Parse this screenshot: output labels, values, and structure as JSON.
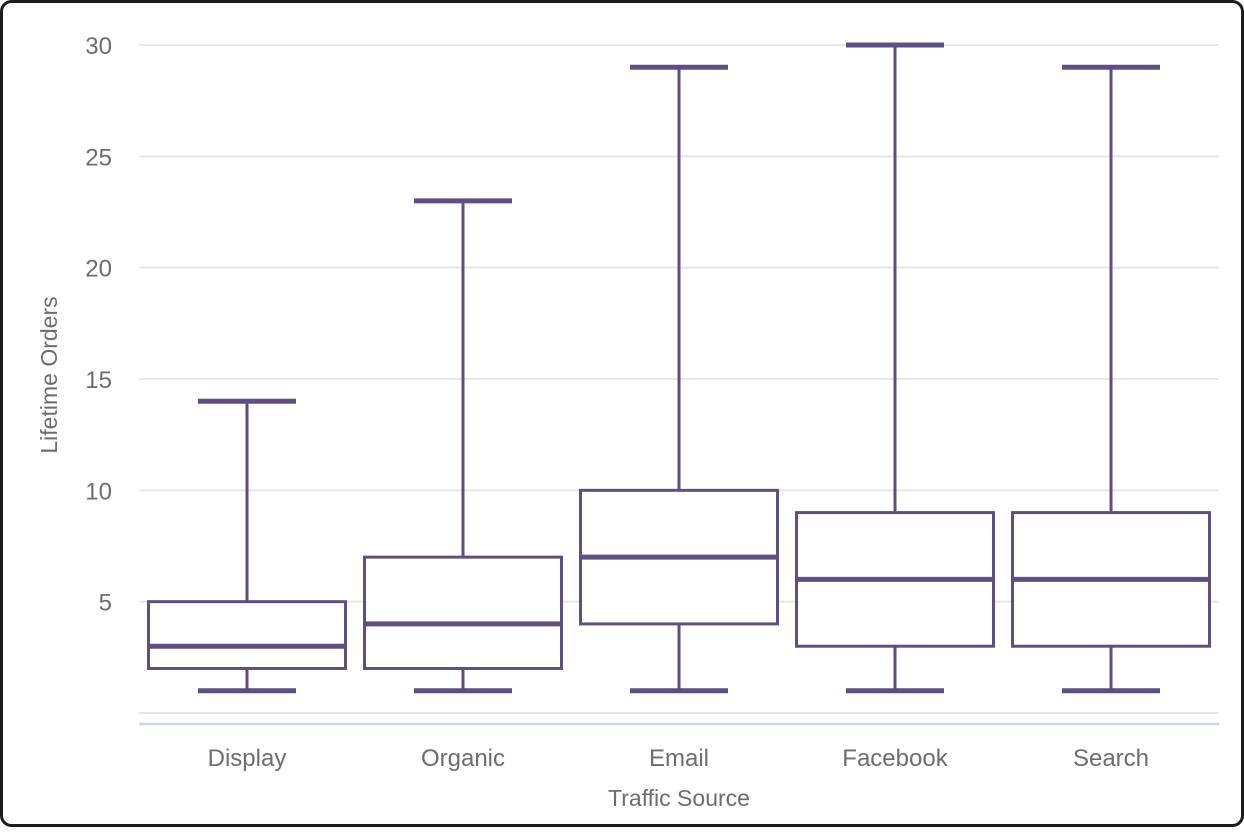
{
  "chart_data": {
    "type": "boxplot",
    "title": "",
    "xlabel": "Traffic Source",
    "ylabel": "Lifetime Orders",
    "categories": [
      "Display",
      "Organic",
      "Email",
      "Facebook",
      "Search"
    ],
    "series": [
      {
        "name": "Display",
        "min": 1,
        "q1": 2,
        "median": 3,
        "q3": 5,
        "max": 14
      },
      {
        "name": "Organic",
        "min": 1,
        "q1": 2,
        "median": 4,
        "q3": 7,
        "max": 23
      },
      {
        "name": "Email",
        "min": 1,
        "q1": 4,
        "median": 7,
        "q3": 10,
        "max": 29
      },
      {
        "name": "Facebook",
        "min": 1,
        "q1": 3,
        "median": 6,
        "q3": 9,
        "max": 30
      },
      {
        "name": "Search",
        "min": 1,
        "q1": 3,
        "median": 6,
        "q3": 9,
        "max": 29
      }
    ],
    "ylim": [
      0,
      30
    ],
    "yticks": [
      5,
      10,
      15,
      20,
      25,
      30
    ],
    "ytick_labels": [
      "5",
      "10",
      "15",
      "20",
      "25",
      "30"
    ],
    "gridline_values": [
      0,
      5,
      10,
      15,
      20,
      25,
      30
    ],
    "grid": true,
    "legend": "none",
    "colors": {
      "box": "#5E4E84",
      "grid": "#E7E7E7",
      "text": "#6D6D6D",
      "baseline": "#C9D5EA",
      "frame_border": "#1C1C1C",
      "background": "#FFFFFF"
    }
  }
}
